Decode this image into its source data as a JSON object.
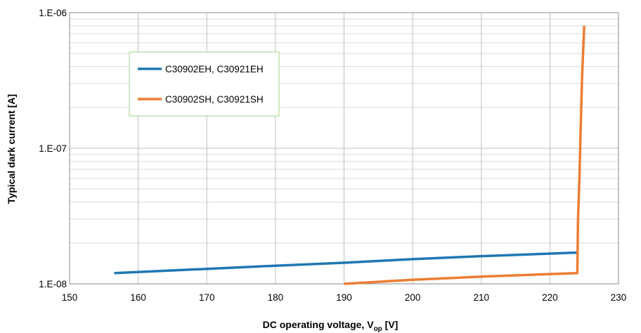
{
  "chart_data": {
    "type": "line",
    "title": "",
    "xlabel_main": "DC operating voltage, V",
    "xlabel_sub": "op",
    "xlabel_unit": " [V]",
    "ylabel": "Typical dark current [A]",
    "xlim": [
      150,
      230
    ],
    "ylim": [
      1e-08,
      1e-06
    ],
    "yscale": "log",
    "grid": true,
    "legend_position": "upper-left",
    "x_ticks": [
      150,
      160,
      170,
      180,
      190,
      200,
      210,
      220,
      230
    ],
    "x_tick_labels": [
      "150",
      "160",
      "170",
      "180",
      "190",
      "200",
      "210",
      "220",
      "230"
    ],
    "y_ticks": [
      1e-08,
      1e-07,
      1e-06
    ],
    "y_tick_labels": [
      "1.E-08",
      "1.E-07",
      "1.E-06"
    ],
    "series": [
      {
        "name": "C30902EH, C30921EH",
        "color": "#1f77b4",
        "x": [
          156.5,
          170,
          180,
          190,
          200,
          210,
          220,
          224
        ],
        "y": [
          1.2e-08,
          1.29e-08,
          1.36e-08,
          1.43e-08,
          1.52e-08,
          1.6e-08,
          1.67e-08,
          1.7e-08
        ]
      },
      {
        "name": "C30902SH, C30921SH",
        "color": "#ed7d31",
        "x": [
          190,
          200,
          210,
          220,
          224,
          224.1,
          224.3,
          224.5,
          224.7,
          225
        ],
        "y": [
          1e-08,
          1.07e-08,
          1.13e-08,
          1.18e-08,
          1.2e-08,
          3e-08,
          6e-08,
          1.5e-07,
          3.5e-07,
          8e-07
        ]
      }
    ]
  }
}
